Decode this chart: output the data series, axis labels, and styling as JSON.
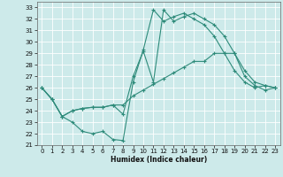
{
  "xlabel": "Humidex (Indice chaleur)",
  "bg_color": "#cdeaea",
  "grid_color": "#b8d8d8",
  "line_color": "#2e8b7a",
  "xlim": [
    -0.5,
    23.5
  ],
  "ylim": [
    21,
    33.5
  ],
  "yticks": [
    21,
    22,
    23,
    24,
    25,
    26,
    27,
    28,
    29,
    30,
    31,
    32,
    33
  ],
  "xticks": [
    0,
    1,
    2,
    3,
    4,
    5,
    6,
    7,
    8,
    9,
    10,
    11,
    12,
    13,
    14,
    15,
    16,
    17,
    18,
    19,
    20,
    21,
    22,
    23
  ],
  "line1_x": [
    0,
    1,
    2,
    3,
    4,
    5,
    6,
    7,
    8,
    9,
    10,
    11,
    12,
    13,
    14,
    15,
    16,
    17,
    18,
    19,
    20,
    21,
    22,
    23
  ],
  "line1_y": [
    26.0,
    25.0,
    23.5,
    23.0,
    22.2,
    22.0,
    22.2,
    21.5,
    21.4,
    26.5,
    29.3,
    32.8,
    31.8,
    32.2,
    32.5,
    32.0,
    31.5,
    30.5,
    29.0,
    27.5,
    26.5,
    26.0,
    26.2,
    26.0
  ],
  "line2_x": [
    0,
    1,
    2,
    3,
    4,
    5,
    6,
    7,
    8,
    9,
    10,
    11,
    12,
    13,
    14,
    15,
    16,
    17,
    18,
    19,
    20,
    21,
    22,
    23
  ],
  "line2_y": [
    26.0,
    25.0,
    23.5,
    24.0,
    24.2,
    24.3,
    24.3,
    24.5,
    23.7,
    27.0,
    29.2,
    26.5,
    32.8,
    31.8,
    32.2,
    32.5,
    32.0,
    31.5,
    30.5,
    29.0,
    27.5,
    26.5,
    26.2,
    26.0
  ],
  "line3_x": [
    0,
    1,
    2,
    3,
    4,
    5,
    6,
    7,
    8,
    9,
    10,
    11,
    12,
    13,
    14,
    15,
    16,
    17,
    18,
    19,
    20,
    21,
    22,
    23
  ],
  "line3_y": [
    26.0,
    25.0,
    23.5,
    24.0,
    24.2,
    24.3,
    24.3,
    24.5,
    24.5,
    25.3,
    25.8,
    26.3,
    26.8,
    27.3,
    27.8,
    28.3,
    28.3,
    29.0,
    29.0,
    29.0,
    27.0,
    26.2,
    25.8,
    26.0
  ]
}
